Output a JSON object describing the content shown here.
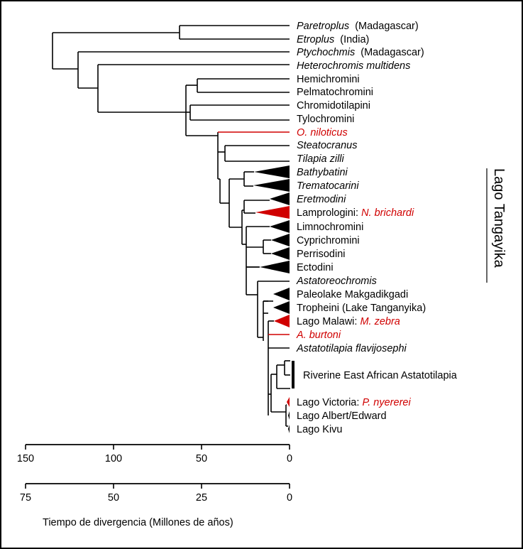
{
  "colors": {
    "highlight": "#d00000",
    "default": "#000000"
  },
  "taxa": [
    {
      "id": "paretroplus",
      "parts": [
        {
          "text": "Paretroplus",
          "italic": true
        },
        {
          "text": "  (Madagascar)",
          "italic": false
        }
      ],
      "branch_color": "black",
      "collapsed": false
    },
    {
      "id": "etroplus",
      "parts": [
        {
          "text": "Etroplus",
          "italic": true
        },
        {
          "text": "  (India)",
          "italic": false
        }
      ],
      "branch_color": "black",
      "collapsed": false
    },
    {
      "id": "ptychochromis",
      "parts": [
        {
          "text": "Ptychochmis",
          "italic": true
        },
        {
          "text": "  (Madagascar)",
          "italic": false
        }
      ],
      "branch_color": "black",
      "collapsed": false
    },
    {
      "id": "heterochromis",
      "parts": [
        {
          "text": "Heterochromis multidens",
          "italic": true
        }
      ],
      "branch_color": "black",
      "collapsed": false
    },
    {
      "id": "hemichromini",
      "parts": [
        {
          "text": "Hemichromini",
          "italic": false
        }
      ],
      "branch_color": "black",
      "collapsed": false
    },
    {
      "id": "pelmatochromini",
      "parts": [
        {
          "text": "Pelmatochromini",
          "italic": false
        }
      ],
      "branch_color": "black",
      "collapsed": false
    },
    {
      "id": "chromidotilapini",
      "parts": [
        {
          "text": "Chromidotilapini",
          "italic": false
        }
      ],
      "branch_color": "black",
      "collapsed": false
    },
    {
      "id": "tylochromini",
      "parts": [
        {
          "text": "Tylochromini",
          "italic": false
        }
      ],
      "branch_color": "black",
      "collapsed": false
    },
    {
      "id": "o-niloticus",
      "parts": [
        {
          "text": "O. niloticus",
          "italic": true,
          "red": true
        }
      ],
      "branch_color": "red",
      "collapsed": false
    },
    {
      "id": "steatocranus",
      "parts": [
        {
          "text": "Steatocranus",
          "italic": true
        }
      ],
      "branch_color": "black",
      "collapsed": false
    },
    {
      "id": "tilapia-zilli",
      "parts": [
        {
          "text": "Tilapia zilli",
          "italic": true
        }
      ],
      "branch_color": "black",
      "collapsed": false
    },
    {
      "id": "bathybatini",
      "parts": [
        {
          "text": "Bathybatini",
          "italic": true
        }
      ],
      "branch_color": "black",
      "collapsed": true
    },
    {
      "id": "trematocarini",
      "parts": [
        {
          "text": "Trematocarini",
          "italic": true
        }
      ],
      "branch_color": "black",
      "collapsed": true
    },
    {
      "id": "eretmodini",
      "parts": [
        {
          "text": "Eretmodini",
          "italic": true
        }
      ],
      "branch_color": "black",
      "collapsed": true
    },
    {
      "id": "lamprologini",
      "parts": [
        {
          "text": "Lamprologini: ",
          "italic": false
        },
        {
          "text": "N. brichardi",
          "italic": true,
          "red": true
        }
      ],
      "branch_color": "red",
      "collapsed": true
    },
    {
      "id": "limnochromini",
      "parts": [
        {
          "text": "Limnochromini",
          "italic": false
        }
      ],
      "branch_color": "black",
      "collapsed": true
    },
    {
      "id": "cyprichromini",
      "parts": [
        {
          "text": "Cyprichromini",
          "italic": false
        }
      ],
      "branch_color": "black",
      "collapsed": true
    },
    {
      "id": "perrisodini",
      "parts": [
        {
          "text": "Perrisodini",
          "italic": false
        }
      ],
      "branch_color": "black",
      "collapsed": true
    },
    {
      "id": "ectodini",
      "parts": [
        {
          "text": "Ectodini",
          "italic": false
        }
      ],
      "branch_color": "black",
      "collapsed": true
    },
    {
      "id": "astatoreochromis",
      "parts": [
        {
          "text": "Astatoreochromis",
          "italic": true
        }
      ],
      "branch_color": "black",
      "collapsed": false
    },
    {
      "id": "paleolake",
      "parts": [
        {
          "text": "Paleolake Makgadikgadi",
          "italic": false
        }
      ],
      "branch_color": "black",
      "collapsed": true
    },
    {
      "id": "tropheini",
      "parts": [
        {
          "text": "Tropheini (Lake Tanganyika)",
          "italic": false
        }
      ],
      "branch_color": "black",
      "collapsed": true
    },
    {
      "id": "malawi",
      "parts": [
        {
          "text": "Lago Malawi: ",
          "italic": false
        },
        {
          "text": "M. zebra",
          "italic": true,
          "red": true
        }
      ],
      "branch_color": "red",
      "collapsed": true
    },
    {
      "id": "a-burtoni",
      "parts": [
        {
          "text": "A. burtoni",
          "italic": true,
          "red": true
        }
      ],
      "branch_color": "red",
      "collapsed": false
    },
    {
      "id": "flavijosephi",
      "parts": [
        {
          "text": "Astatotilapia flavijosephi",
          "italic": true
        }
      ],
      "branch_color": "black",
      "collapsed": false
    },
    {
      "id": "riverine",
      "parts": [
        {
          "text": "Riverine East African Astatotilapia",
          "italic": false
        }
      ],
      "branch_color": "black",
      "collapsed": false
    },
    {
      "id": "victoria",
      "parts": [
        {
          "text": "Lago Victoria: ",
          "italic": false
        },
        {
          "text": "P. nyererei",
          "italic": true,
          "red": true
        }
      ],
      "branch_color": "red",
      "collapsed": true
    },
    {
      "id": "albert-edward",
      "parts": [
        {
          "text": "Lago Albert/Edward",
          "italic": false
        }
      ],
      "branch_color": "black",
      "collapsed": true
    },
    {
      "id": "kivu",
      "parts": [
        {
          "text": "Lago Kivu",
          "italic": false
        }
      ],
      "branch_color": "black",
      "collapsed": true
    }
  ],
  "bracket_label": "Lago Tangayika",
  "axes": [
    {
      "id": "axis-top",
      "max": 150,
      "ticks": [
        "150",
        "100",
        "50",
        "0"
      ]
    },
    {
      "id": "axis-bottom",
      "max": 75,
      "ticks": [
        "75",
        "50",
        "25",
        "0"
      ]
    }
  ],
  "xlabel": "Tiempo de divergencia  (Millones de años)"
}
